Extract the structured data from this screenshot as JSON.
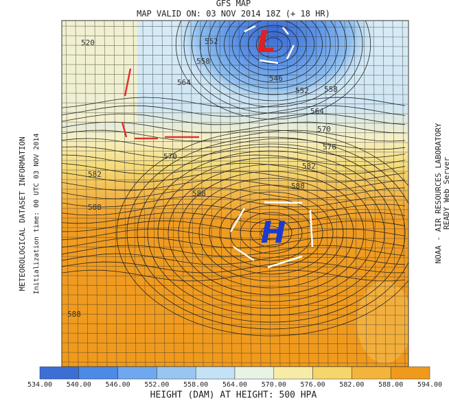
{
  "header": {
    "title": "GFS MAP",
    "subtitle": "MAP VALID ON: 03 NOV 2014 18Z (+ 18 HR)"
  },
  "left_text": {
    "line1": "METEOROLOGICAL DATASET INFORMATION",
    "line2": "Initialization time: 00 UTC 03 NOV 2014"
  },
  "right_text": {
    "line1": "NOAA - AIR RESOURCES LABORATORY",
    "line2": "READY Web Server"
  },
  "map": {
    "low_label": "L",
    "high_label": "H",
    "contour_labels": [
      "520",
      "552",
      "558",
      "564",
      "546",
      "552",
      "558",
      "564",
      "570",
      "576",
      "570",
      "582",
      "582",
      "588",
      "588",
      "588",
      "588"
    ]
  },
  "colorbar": {
    "labels": [
      "534.00",
      "540.00",
      "546.00",
      "552.00",
      "558.00",
      "564.00",
      "570.00",
      "576.00",
      "582.00",
      "588.00",
      "594.00"
    ],
    "colors": [
      "#3b6fd6",
      "#4b8ae6",
      "#6fa8ee",
      "#98c6f2",
      "#c3e2f6",
      "#e8f3e6",
      "#f6eca8",
      "#f5d66a",
      "#f3b43c",
      "#f09a1c"
    ]
  },
  "footer": {
    "caption": "HEIGHT (DAM) AT HEIGHT: 500 HPA"
  }
}
